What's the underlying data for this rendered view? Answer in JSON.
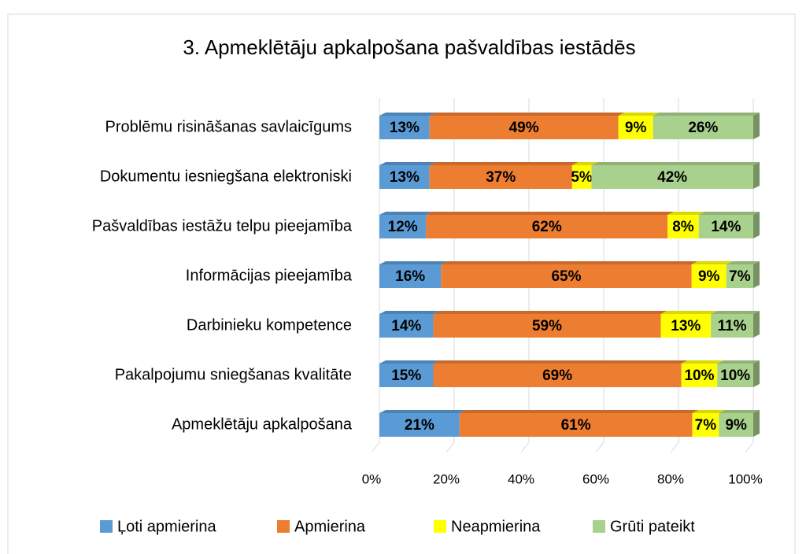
{
  "chart_data": {
    "type": "bar",
    "orientation": "horizontal",
    "stacking": "percent",
    "title": "3. Apmeklētāju apkalpošana pašvaldības iestādēs",
    "categories": [
      "Problēmu risināšanas savlaicīgums",
      "Dokumentu iesniegšana elektroniski",
      "Pašvaldības iestāžu telpu pieejamība",
      "Informācijas pieejamība",
      "Darbinieku kompetence",
      "Pakalpojumu sniegšanas kvalitāte",
      "Apmeklētāju apkalpošana"
    ],
    "series": [
      {
        "name": "Ļoti apmierina",
        "color": "#5b9bd5",
        "values": [
          13,
          13,
          12,
          16,
          14,
          15,
          21
        ],
        "value_labels": [
          "13%",
          "13%",
          "12%",
          "16%",
          "14%",
          "15%",
          "21%"
        ]
      },
      {
        "name": "Apmierina",
        "color": "#ed7d31",
        "values": [
          49,
          37,
          62,
          65,
          59,
          69,
          61
        ],
        "value_labels": [
          "49%",
          "37%",
          "62%",
          "65%",
          "59%",
          "69%",
          "61%"
        ]
      },
      {
        "name": "Neapmierina",
        "color": "#ffff00",
        "values": [
          9,
          5,
          8,
          9,
          13,
          10,
          7
        ],
        "value_labels": [
          "9%",
          "5%",
          "8%",
          "9%",
          "13%",
          "10%",
          "7%"
        ]
      },
      {
        "name": "Grūti pateikt",
        "color": "#a9d18e",
        "values": [
          26,
          42,
          14,
          7,
          11,
          10,
          9
        ],
        "value_labels": [
          "26%",
          "42%",
          "14%",
          "7%",
          "11%",
          "10%",
          "9%"
        ]
      }
    ],
    "xlim": [
      0,
      100
    ],
    "xticks": [
      {
        "value": 0,
        "label": "0%"
      },
      {
        "value": 20,
        "label": "20%"
      },
      {
        "value": 40,
        "label": "40%"
      },
      {
        "value": 60,
        "label": "60%"
      },
      {
        "value": 80,
        "label": "80%"
      },
      {
        "value": 100,
        "label": "100%"
      }
    ],
    "grid": true,
    "legend": "bottom"
  }
}
